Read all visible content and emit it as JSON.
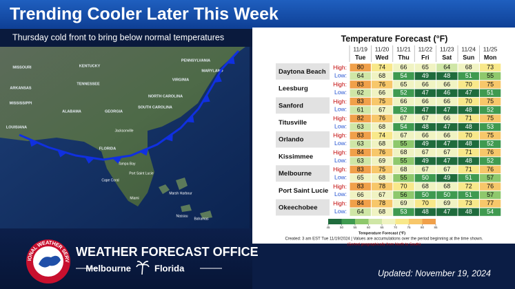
{
  "header": {
    "title": "Trending Cooler Later This Week",
    "subtitle": "Thursday cold front to bring below normal temperatures"
  },
  "map": {
    "labels": [
      "MISSOURI",
      "KENTUCKY",
      "PENNSYLVANIA",
      "MARYLAND",
      "TENNESSEE",
      "VIRGINIA",
      "ARKANSAS",
      "NORTH CAROLINA",
      "MISSISSIPPI",
      "SOUTH CAROLINA",
      "ALABAMA",
      "GEORGIA",
      "LOUISIANA",
      "Jacksonville",
      "FLORIDA",
      "Tampa Bay",
      "Port Saint Lucie",
      "Cape Coral",
      "Miami",
      "Marsh Harbour",
      "Nassau",
      "Bahamas"
    ]
  },
  "table": {
    "title": "Temperature Forecast (°F)",
    "high_label": "High:",
    "low_label": "Low:",
    "columns": [
      {
        "date": "11/19",
        "day": "Tue"
      },
      {
        "date": "11/20",
        "day": "Wed"
      },
      {
        "date": "11/21",
        "day": "Thu"
      },
      {
        "date": "11/22",
        "day": "Fri"
      },
      {
        "date": "11/23",
        "day": "Sat"
      },
      {
        "date": "11/24",
        "day": "Sun"
      },
      {
        "date": "11/25",
        "day": "Mon"
      }
    ],
    "rows": [
      {
        "station": "Daytona Beach",
        "high": [
          80,
          74,
          66,
          65,
          64,
          68,
          73
        ],
        "low": [
          64,
          68,
          54,
          49,
          48,
          51,
          55
        ]
      },
      {
        "station": "Leesburg",
        "high": [
          83,
          76,
          65,
          66,
          66,
          70,
          75
        ],
        "low": [
          62,
          66,
          52,
          47,
          46,
          47,
          51
        ]
      },
      {
        "station": "Sanford",
        "high": [
          83,
          75,
          66,
          66,
          66,
          70,
          75
        ],
        "low": [
          61,
          67,
          52,
          47,
          47,
          48,
          52
        ]
      },
      {
        "station": "Titusville",
        "high": [
          82,
          76,
          67,
          67,
          66,
          71,
          75
        ],
        "low": [
          63,
          68,
          54,
          48,
          47,
          48,
          53
        ]
      },
      {
        "station": "Orlando",
        "high": [
          83,
          74,
          67,
          66,
          66,
          70,
          75
        ],
        "low": [
          63,
          68,
          55,
          49,
          47,
          48,
          52
        ]
      },
      {
        "station": "Kissimmee",
        "high": [
          84,
          76,
          68,
          67,
          67,
          71,
          76
        ],
        "low": [
          63,
          69,
          55,
          49,
          47,
          48,
          52
        ]
      },
      {
        "station": "Melbourne",
        "high": [
          83,
          75,
          68,
          67,
          67,
          71,
          76
        ],
        "low": [
          65,
          68,
          55,
          50,
          49,
          51,
          57
        ]
      },
      {
        "station": "Port Saint Lucie",
        "high": [
          83,
          78,
          70,
          68,
          68,
          72,
          76
        ],
        "low": [
          66,
          67,
          56,
          50,
          50,
          51,
          57
        ]
      },
      {
        "station": "Okeechobee",
        "high": [
          84,
          78,
          69,
          70,
          69,
          73,
          77
        ],
        "low": [
          64,
          68,
          53,
          48,
          47,
          48,
          54
        ]
      }
    ],
    "colorbar": {
      "ticks": [
        45,
        50,
        55,
        60,
        65,
        70,
        75,
        80,
        85
      ],
      "colors": [
        "#1f6b3c",
        "#3f9a50",
        "#8ec86c",
        "#cfe6a6",
        "#f0f3c2",
        "#f8e88a",
        "#f7c76a",
        "#f0a04a"
      ],
      "label": "Temperature Forecast (°F)"
    },
    "created": "Created: 3 am EST Tue 11/19/2024  |  Values are accumulations over the period beginning at the time shown.",
    "sorted": "(Sorted geographically from North to South)"
  },
  "footer": {
    "office": "WEATHER FORECAST OFFICE",
    "city": "Melbourne",
    "state": "Florida",
    "logo": "NATIONAL WEATHER SERVICE",
    "updated": "Updated: November 19, 2024"
  }
}
